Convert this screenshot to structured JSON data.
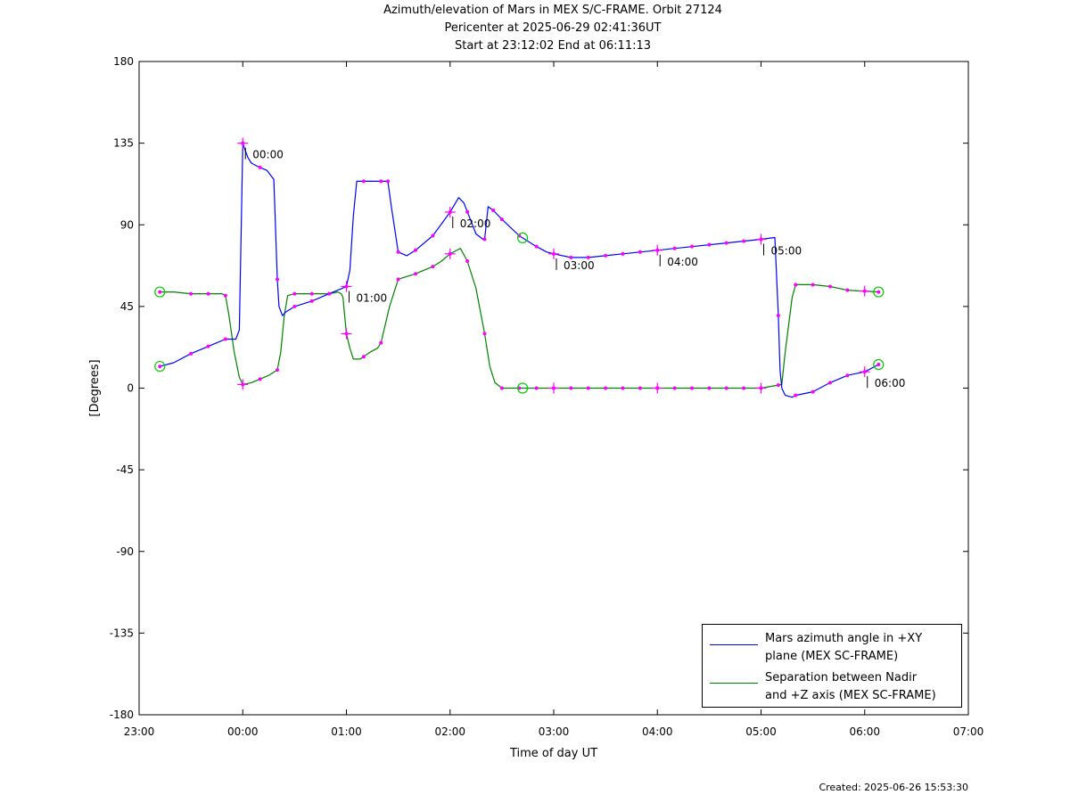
{
  "title": {
    "line1": "Azimuth/elevation of Mars in MEX S/C-FRAME.  Orbit 27124",
    "line2": "Pericenter at 2025-06-29 02:41:36UT",
    "line3": "Start at 23:12:02 End at 06:11:13"
  },
  "footer": {
    "created": "Created: 2025-06-26 15:53:30"
  },
  "colors": {
    "azimuth": "#0000ff",
    "separation": "#008000",
    "markers": "#ff00ff",
    "circles": "#00cc00"
  },
  "chart_data": {
    "type": "line",
    "xlabel": "Time of day UT",
    "ylabel": "[Degrees]",
    "xlim": [
      -60,
      420
    ],
    "ylim": [
      -180,
      180
    ],
    "x_unit": "minutes relative to 00:00 UT",
    "x_ticks": [
      {
        "value": -60,
        "label": "23:00"
      },
      {
        "value": 0,
        "label": "00:00"
      },
      {
        "value": 60,
        "label": "01:00"
      },
      {
        "value": 120,
        "label": "02:00"
      },
      {
        "value": 180,
        "label": "03:00"
      },
      {
        "value": 240,
        "label": "04:00"
      },
      {
        "value": 300,
        "label": "05:00"
      },
      {
        "value": 360,
        "label": "06:00"
      },
      {
        "value": 420,
        "label": "07:00"
      }
    ],
    "y_ticks": [
      180,
      135,
      90,
      45,
      0,
      -45,
      -90,
      -135,
      -180
    ],
    "grid": false,
    "legend_position": "bottom-right",
    "series": [
      {
        "name": "Mars azimuth angle in +XY plane (MEX SC-FRAME)",
        "color": "#0000ff",
        "legend_lines": [
          "Mars azimuth angle in +XY",
          "plane (MEX SC-FRAME)"
        ],
        "x": [
          -48,
          -40,
          -30,
          -20,
          -10,
          -4,
          -2,
          0,
          1,
          3,
          5,
          9,
          14,
          18,
          20,
          21,
          23,
          25,
          30,
          40,
          50,
          55,
          60,
          62,
          64,
          66,
          70,
          80,
          84,
          86,
          90,
          95,
          100,
          110,
          120,
          125,
          128,
          135,
          139,
          140,
          142,
          145,
          150,
          160,
          170,
          176,
          180,
          190,
          200,
          210,
          220,
          240,
          260,
          280,
          300,
          308,
          310,
          311,
          312,
          314,
          318,
          320,
          330,
          340,
          350,
          360,
          368
        ],
        "y": [
          12,
          14,
          19,
          23,
          27,
          27,
          32,
          135,
          132,
          127,
          124,
          122,
          120,
          115,
          60,
          45,
          40,
          42,
          45,
          48,
          52,
          54,
          56,
          65,
          95,
          114,
          114,
          114,
          114,
          100,
          75,
          73,
          76,
          84,
          97,
          105,
          102,
          85,
          82,
          82,
          100,
          98,
          93,
          84,
          78,
          75,
          74,
          72,
          72,
          73,
          74,
          76,
          78,
          80,
          82,
          83,
          40,
          10,
          0,
          -4,
          -5,
          -4,
          -2,
          3,
          7,
          9,
          13
        ]
      },
      {
        "name": "Separation between Nadir and +Z axis (MEX SC-FRAME)",
        "color": "#008000",
        "legend_lines": [
          "Separation between Nadir",
          "and +Z axis (MEX SC-FRAME)"
        ],
        "x": [
          -48,
          -40,
          -30,
          -20,
          -12,
          -10,
          -8,
          -5,
          -2,
          0,
          5,
          10,
          15,
          20,
          22,
          24,
          26,
          30,
          40,
          50,
          55,
          57,
          58,
          60,
          62,
          64,
          68,
          74,
          78,
          80,
          85,
          90,
          100,
          110,
          115,
          120,
          126,
          130,
          135,
          140,
          143,
          146,
          150,
          160,
          170,
          180,
          200,
          240,
          300,
          312,
          314,
          318,
          320,
          330,
          340,
          350,
          368
        ],
        "y": [
          53,
          53,
          52,
          52,
          52,
          51,
          40,
          20,
          6,
          2,
          3,
          5,
          7,
          10,
          20,
          40,
          51,
          52,
          52,
          52,
          53,
          52,
          50,
          30,
          22,
          16,
          16,
          20,
          22,
          25,
          45,
          60,
          63,
          67,
          70,
          74,
          77,
          70,
          55,
          30,
          12,
          3,
          0,
          0,
          0,
          0,
          0,
          0,
          0,
          2,
          20,
          50,
          57,
          57,
          56,
          54,
          53
        ]
      }
    ],
    "sample_markers": [
      {
        "series": 0,
        "x": [
          -48,
          -30,
          -20,
          -10,
          0,
          10,
          20,
          30,
          40,
          50,
          60,
          70,
          80,
          84,
          90,
          100,
          110,
          120,
          130,
          140,
          145,
          150,
          160,
          170,
          180,
          190,
          200,
          210,
          220,
          230,
          240,
          250,
          260,
          270,
          280,
          290,
          300,
          310,
          320,
          330,
          340,
          350,
          360,
          368
        ]
      },
      {
        "series": 1,
        "x": [
          -48,
          -30,
          -20,
          -10,
          0,
          10,
          20,
          30,
          40,
          50,
          60,
          70,
          80,
          90,
          100,
          110,
          120,
          130,
          140,
          150,
          160,
          170,
          180,
          190,
          200,
          210,
          220,
          230,
          240,
          250,
          260,
          270,
          280,
          290,
          300,
          310,
          320,
          330,
          340,
          350,
          360,
          368
        ]
      }
    ],
    "annotations": [
      {
        "series": 0,
        "x": 0,
        "label": "00:00"
      },
      {
        "series": 0,
        "x": 60,
        "label": "01:00"
      },
      {
        "series": 0,
        "x": 120,
        "label": "02:00"
      },
      {
        "series": 0,
        "x": 180,
        "label": "03:00"
      },
      {
        "series": 0,
        "x": 240,
        "label": "04:00"
      },
      {
        "series": 0,
        "x": 300,
        "label": "05:00"
      },
      {
        "series": 0,
        "x": 360,
        "label": "06:00"
      }
    ],
    "circles": [
      {
        "series": 0,
        "x": -48
      },
      {
        "series": 0,
        "x": 368
      },
      {
        "series": 1,
        "x": -48
      },
      {
        "series": 1,
        "x": 368
      },
      {
        "series": 0,
        "x": 162
      },
      {
        "series": 1,
        "x": 162
      }
    ]
  }
}
